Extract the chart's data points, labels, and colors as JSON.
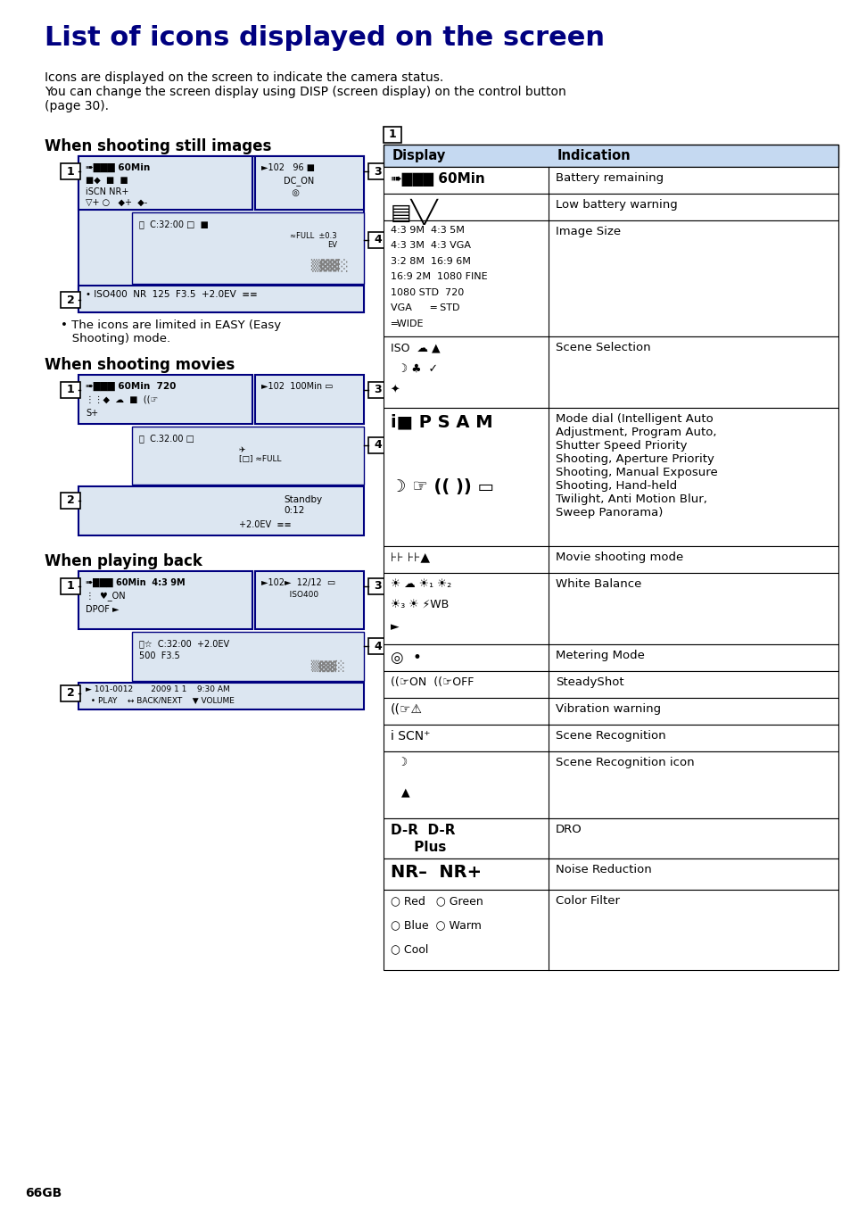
{
  "title": "List of icons displayed on the screen",
  "title_color": "#000080",
  "title_fontsize": 22,
  "body_text_intro": "Icons are displayed on the screen to indicate the camera status.\nYou can change the screen display using DISP (screen display) on the control button\n(page 30).",
  "section1_title": "When shooting still images",
  "section2_title": "When shooting movies",
  "section3_title": "When playing back",
  "easy_note": "• The icons are limited in EASY (Easy\n   Shooting) mode.",
  "table_header_bg": "#c5d9f1",
  "table_row_bg": "#ffffff",
  "table_border": "#000000",
  "box_border": "#000080",
  "screen_bg": "#dce6f1",
  "page_bg": "#ffffff",
  "page_number": "66GB"
}
